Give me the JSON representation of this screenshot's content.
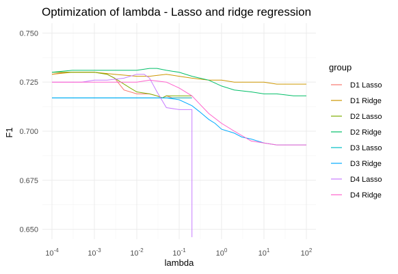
{
  "chart_data": {
    "type": "line",
    "title": "Optimization of lambda - Lasso and ridge regression",
    "xlabel": "lambda",
    "ylabel": "F1",
    "x_scale": "log10",
    "xlim": [
      0.0001,
      100
    ],
    "ylim": [
      0.645,
      0.755
    ],
    "x_ticks": [
      {
        "value": 0.0001,
        "base": "10",
        "exp": "-4"
      },
      {
        "value": 0.001,
        "base": "10",
        "exp": "-3"
      },
      {
        "value": 0.01,
        "base": "10",
        "exp": "-2"
      },
      {
        "value": 0.1,
        "base": "10",
        "exp": "-1"
      },
      {
        "value": 1,
        "base": "10",
        "exp": "0"
      },
      {
        "value": 10,
        "base": "10",
        "exp": "1"
      },
      {
        "value": 100,
        "base": "10",
        "exp": "2"
      }
    ],
    "y_ticks": [
      {
        "value": 0.65,
        "label": "0.650"
      },
      {
        "value": 0.675,
        "label": "0.675"
      },
      {
        "value": 0.7,
        "label": "0.700"
      },
      {
        "value": 0.725,
        "label": "0.725"
      },
      {
        "value": 0.75,
        "label": "0.750"
      }
    ],
    "grid": true,
    "legend": {
      "title": "group",
      "placement": "right"
    },
    "series": [
      {
        "name": "D1 Lasso",
        "color": "#F8766D",
        "x": [
          0.0001,
          0.0002,
          0.0005,
          0.001,
          0.002,
          0.003,
          0.005,
          0.01,
          0.02,
          0.03,
          0.04,
          0.05,
          0.07,
          0.1,
          0.15,
          0.2
        ],
        "y": [
          0.729,
          0.73,
          0.73,
          0.73,
          0.729,
          0.727,
          0.721,
          0.719,
          0.719,
          0.718,
          0.717,
          0.718,
          0.717,
          0.717,
          0.717,
          0.717
        ]
      },
      {
        "name": "D1 Ridge",
        "color": "#CD9600",
        "x": [
          0.0001,
          0.0003,
          0.001,
          0.003,
          0.01,
          0.02,
          0.05,
          0.1,
          0.2,
          0.5,
          1,
          2,
          5,
          10,
          20,
          50,
          100
        ],
        "y": [
          0.729,
          0.73,
          0.73,
          0.729,
          0.728,
          0.728,
          0.729,
          0.728,
          0.727,
          0.726,
          0.726,
          0.725,
          0.725,
          0.725,
          0.724,
          0.724,
          0.724
        ]
      },
      {
        "name": "D2 Lasso",
        "color": "#7CAE00",
        "x": [
          0.0001,
          0.0003,
          0.001,
          0.002,
          0.003,
          0.005,
          0.007,
          0.01,
          0.02,
          0.03,
          0.04,
          0.05,
          0.07,
          0.1,
          0.15,
          0.2
        ],
        "y": [
          0.73,
          0.73,
          0.73,
          0.729,
          0.727,
          0.724,
          0.722,
          0.72,
          0.719,
          0.718,
          0.717,
          0.718,
          0.718,
          0.718,
          0.718,
          0.718
        ]
      },
      {
        "name": "D2 Ridge",
        "color": "#00BE67",
        "x": [
          0.0001,
          0.0003,
          0.001,
          0.003,
          0.01,
          0.02,
          0.03,
          0.05,
          0.1,
          0.2,
          0.5,
          1,
          2,
          5,
          10,
          20,
          50,
          100
        ],
        "y": [
          0.73,
          0.731,
          0.731,
          0.731,
          0.731,
          0.732,
          0.732,
          0.731,
          0.73,
          0.728,
          0.726,
          0.723,
          0.721,
          0.72,
          0.719,
          0.719,
          0.718,
          0.718
        ]
      },
      {
        "name": "D3 Lasso",
        "color": "#00BFC4",
        "x": [
          0.0001,
          0.001,
          0.01,
          0.05,
          0.1,
          0.15,
          0.2
        ],
        "y": [
          0.717,
          0.717,
          0.717,
          0.717,
          0.717,
          0.717,
          0.717
        ]
      },
      {
        "name": "D3 Ridge",
        "color": "#00A9FF",
        "x": [
          0.0001,
          0.001,
          0.01,
          0.05,
          0.1,
          0.2,
          0.3,
          0.5,
          0.7,
          1,
          2,
          3,
          5,
          10,
          20,
          50,
          100
        ],
        "y": [
          0.717,
          0.717,
          0.717,
          0.717,
          0.716,
          0.713,
          0.71,
          0.706,
          0.704,
          0.701,
          0.699,
          0.697,
          0.696,
          0.694,
          0.693,
          0.693,
          0.693
        ]
      },
      {
        "name": "D4 Lasso",
        "color": "#C77CFF",
        "x": [
          0.0001,
          0.0005,
          0.001,
          0.002,
          0.005,
          0.01,
          0.015,
          0.02,
          0.03,
          0.05,
          0.1,
          0.15,
          0.19,
          0.2,
          0.2,
          0.2
        ],
        "y": [
          0.725,
          0.725,
          0.726,
          0.726,
          0.727,
          0.729,
          0.729,
          0.727,
          0.72,
          0.712,
          0.711,
          0.711,
          0.711,
          0.711,
          0.672,
          0.646
        ]
      },
      {
        "name": "D4 Ridge",
        "color": "#FF61CC",
        "x": [
          0.0001,
          0.001,
          0.003,
          0.01,
          0.02,
          0.05,
          0.1,
          0.2,
          0.3,
          0.5,
          1,
          2,
          5,
          10,
          20,
          50,
          100
        ],
        "y": [
          0.725,
          0.725,
          0.725,
          0.725,
          0.726,
          0.725,
          0.722,
          0.718,
          0.714,
          0.709,
          0.704,
          0.7,
          0.695,
          0.694,
          0.693,
          0.693,
          0.693
        ]
      }
    ]
  }
}
